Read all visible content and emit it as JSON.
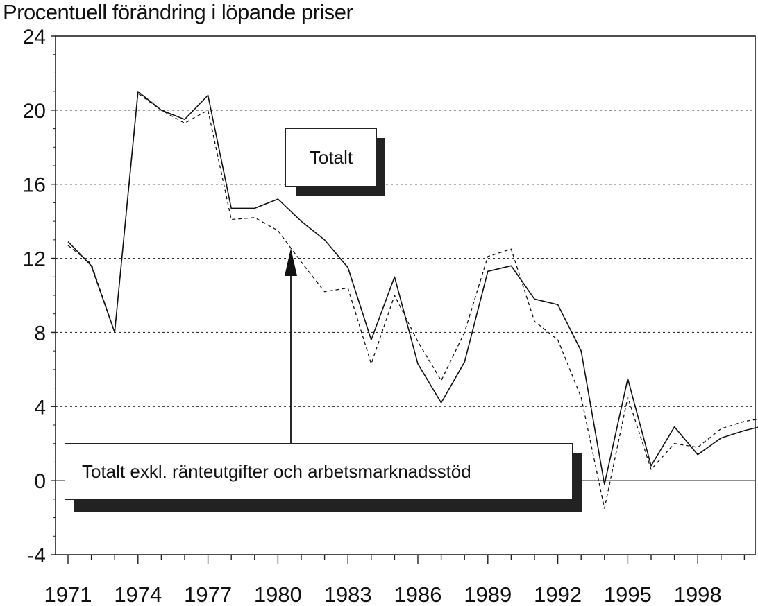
{
  "chart_data": {
    "type": "line",
    "title": "",
    "ylabel": "Procentuell förändring i löpande priser",
    "xlabel": "",
    "ylim": [
      -4,
      24
    ],
    "xlim": [
      1971,
      2001
    ],
    "yticks": [
      -4,
      0,
      4,
      8,
      12,
      16,
      20,
      24
    ],
    "xticks": [
      1971,
      1974,
      1977,
      1980,
      1983,
      1986,
      1989,
      1992,
      1995,
      1998
    ],
    "grid": "horizontal dotted",
    "x": [
      1971,
      1972,
      1973,
      1974,
      1975,
      1976,
      1977,
      1978,
      1979,
      1980,
      1981,
      1982,
      1983,
      1984,
      1985,
      1986,
      1987,
      1988,
      1989,
      1990,
      1991,
      1992,
      1993,
      1994,
      1995,
      1996,
      1997,
      1998,
      1999,
      2000,
      2001
    ],
    "series": [
      {
        "name": "Totalt",
        "style": "solid",
        "color": "#111111",
        "values": [
          12.9,
          11.6,
          8.0,
          21.0,
          20.0,
          19.5,
          20.8,
          14.7,
          14.7,
          15.2,
          14.0,
          13.0,
          11.5,
          7.6,
          11.0,
          6.3,
          4.2,
          6.4,
          11.3,
          11.6,
          9.8,
          9.5,
          7.0,
          -0.2,
          5.5,
          0.8,
          2.9,
          1.4,
          2.3,
          2.7,
          3.0
        ]
      },
      {
        "name": "Totalt exkl. ränteutgifter och arbetsmarknadsstöd",
        "style": "dashed",
        "color": "#111111",
        "values": [
          12.7,
          11.7,
          8.0,
          20.9,
          20.0,
          19.3,
          20.0,
          14.1,
          14.2,
          13.5,
          11.8,
          10.2,
          10.4,
          6.3,
          10.0,
          7.5,
          5.4,
          8.0,
          12.1,
          12.5,
          8.6,
          7.6,
          4.5,
          -1.5,
          4.5,
          0.6,
          2.0,
          1.8,
          2.8,
          3.2,
          3.4
        ]
      }
    ]
  },
  "labels": {
    "totalt": "Totalt",
    "totalt_exkl": "Totalt exkl. ränteutgifter och arbetsmarknadsstöd"
  }
}
